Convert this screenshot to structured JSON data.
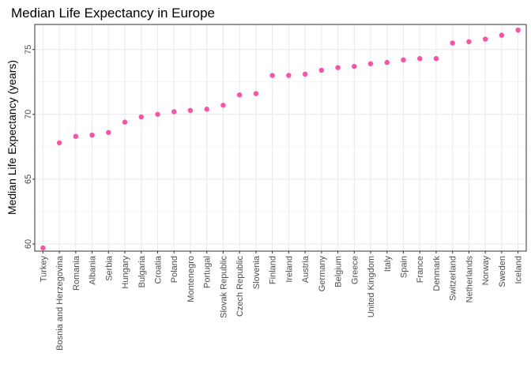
{
  "chart_data": {
    "type": "scatter",
    "title": "Median Life Expectancy in Europe",
    "xlabel": "",
    "ylabel": "Median Life Expectancy (years)",
    "ylim": [
      59.45,
      76.93
    ],
    "yticks": [
      60,
      65,
      70,
      75
    ],
    "grid": true,
    "legend": "none",
    "point_color": "#ff4fa6",
    "categories": [
      "Turkey",
      "Bosnia and Herzegovina",
      "Romania",
      "Albania",
      "Serbia",
      "Hungary",
      "Bulgaria",
      "Croatia",
      "Poland",
      "Montenegro",
      "Portugal",
      "Slovak Republic",
      "Czech Republic",
      "Slovenia",
      "Finland",
      "Ireland",
      "Austria",
      "Germany",
      "Belgium",
      "Greece",
      "United Kingdom",
      "Italy",
      "Spain",
      "France",
      "Denmark",
      "Switzerland",
      "Netherlands",
      "Norway",
      "Sweden",
      "Iceland"
    ],
    "values": [
      59.7,
      67.8,
      68.3,
      68.4,
      68.6,
      69.4,
      69.8,
      70.0,
      70.2,
      70.3,
      70.4,
      70.7,
      71.5,
      71.6,
      73.0,
      73.0,
      73.1,
      73.4,
      73.6,
      73.7,
      73.9,
      74.0,
      74.2,
      74.3,
      74.3,
      75.5,
      75.6,
      75.8,
      76.1,
      76.5
    ]
  }
}
